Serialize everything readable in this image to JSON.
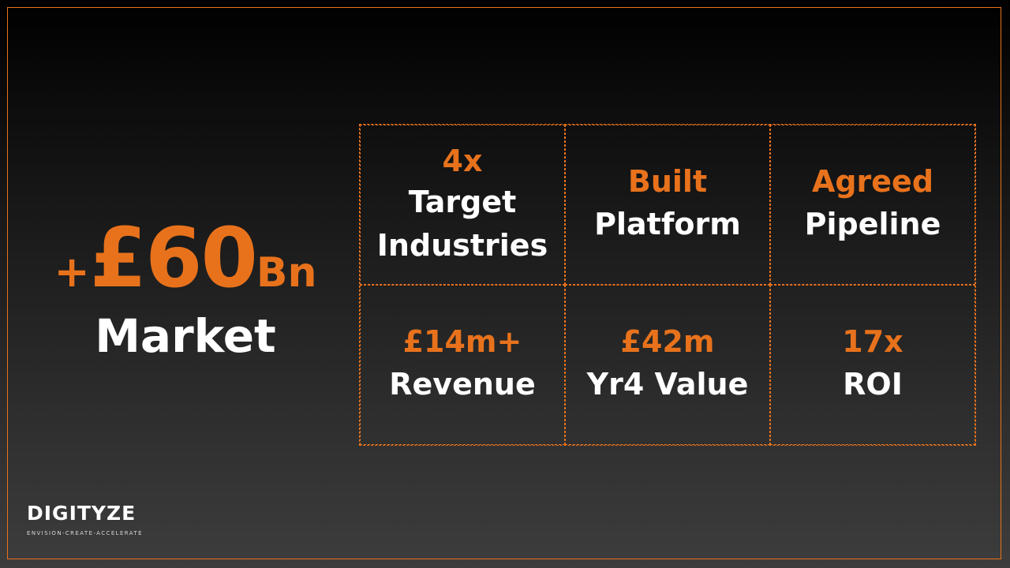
{
  "hero": {
    "plus": "+",
    "value": "£60",
    "unit": "Bn",
    "caption": "Market"
  },
  "stats": [
    {
      "highlight": "4x",
      "label": "Target\nIndustries"
    },
    {
      "highlight": "Built",
      "label": "Platform"
    },
    {
      "highlight": "Agreed",
      "label": "Pipeline"
    },
    {
      "highlight": "£14m+",
      "label": "Revenue"
    },
    {
      "highlight": "£42m",
      "label": "Yr4 Value"
    },
    {
      "highlight": "17x",
      "label": "ROI"
    }
  ],
  "brand": {
    "name": "DIGITYZE",
    "tagline": "ENVISION-CREATE-ACCELERATE"
  },
  "colors": {
    "accent": "#e8721c",
    "text": "#ffffff"
  }
}
